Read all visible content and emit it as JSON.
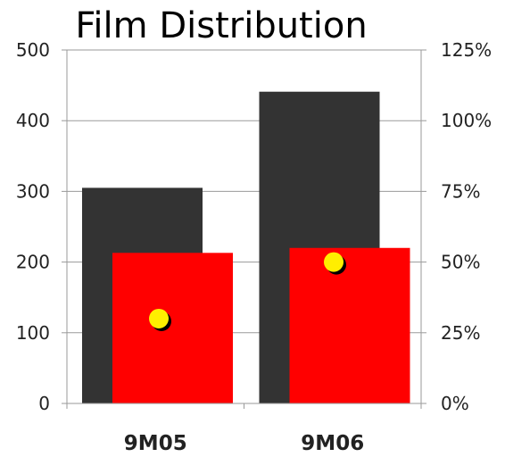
{
  "chart_data": {
    "type": "bar",
    "title": "Film Distribution",
    "categories": [
      "9M05",
      "9M06"
    ],
    "series": [
      {
        "values": [
          305,
          441
        ],
        "color": "#333333",
        "axis": "left"
      },
      {
        "values": [
          213,
          220
        ],
        "color": "#ff0000",
        "axis": "left"
      },
      {
        "type": "scatter",
        "values": [
          30,
          50
        ],
        "color": "#ffee00",
        "axis": "right"
      }
    ],
    "y_left": {
      "min": 0,
      "max": 500,
      "ticks": [
        "0",
        "100",
        "200",
        "300",
        "400",
        "500"
      ]
    },
    "y_right": {
      "min": 0,
      "max": 125,
      "ticks": [
        "0%",
        "25%",
        "50%",
        "75%",
        "100%",
        "125%"
      ]
    },
    "grid": true,
    "legend": "none"
  }
}
